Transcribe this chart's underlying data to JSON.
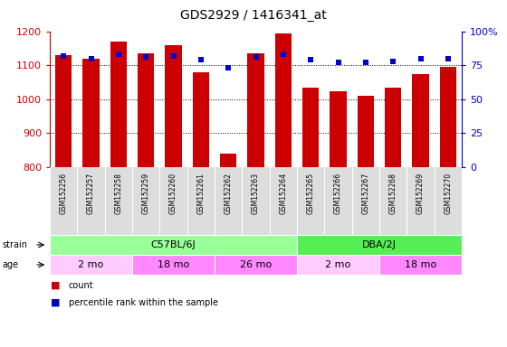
{
  "title": "GDS2929 / 1416341_at",
  "samples": [
    "GSM152256",
    "GSM152257",
    "GSM152258",
    "GSM152259",
    "GSM152260",
    "GSM152261",
    "GSM152262",
    "GSM152263",
    "GSM152264",
    "GSM152265",
    "GSM152266",
    "GSM152267",
    "GSM152268",
    "GSM152269",
    "GSM152270"
  ],
  "counts": [
    1130,
    1120,
    1170,
    1135,
    1160,
    1080,
    840,
    1135,
    1195,
    1035,
    1025,
    1010,
    1035,
    1075,
    1095
  ],
  "percentile_ranks": [
    82,
    80,
    83,
    81,
    82,
    79,
    73,
    81,
    83,
    79,
    77,
    77,
    78,
    80,
    80
  ],
  "y_min": 800,
  "y_max": 1200,
  "y_ticks": [
    800,
    900,
    1000,
    1100,
    1200
  ],
  "right_y_ticks": [
    0,
    25,
    50,
    75,
    100
  ],
  "right_y_labels": [
    "0",
    "25",
    "50",
    "75",
    "100%"
  ],
  "bar_color": "#CC0000",
  "dot_color": "#0000CC",
  "strain_groups": [
    {
      "label": "C57BL/6J",
      "start": 0,
      "end": 8,
      "color": "#99FF99"
    },
    {
      "label": "DBA/2J",
      "start": 9,
      "end": 14,
      "color": "#55EE55"
    }
  ],
  "age_groups": [
    {
      "label": "2 mo",
      "start": 0,
      "end": 2,
      "color": "#FFCCFF"
    },
    {
      "label": "18 mo",
      "start": 3,
      "end": 5,
      "color": "#FF88FF"
    },
    {
      "label": "26 mo",
      "start": 6,
      "end": 8,
      "color": "#FF88FF"
    },
    {
      "label": "2 mo",
      "start": 9,
      "end": 11,
      "color": "#FFCCFF"
    },
    {
      "label": "18 mo",
      "start": 12,
      "end": 14,
      "color": "#FF88FF"
    }
  ],
  "tick_label_color_left": "#CC0000",
  "tick_label_color_right": "#0000CC",
  "fig_width": 5.6,
  "fig_height": 3.84,
  "dpi": 100
}
